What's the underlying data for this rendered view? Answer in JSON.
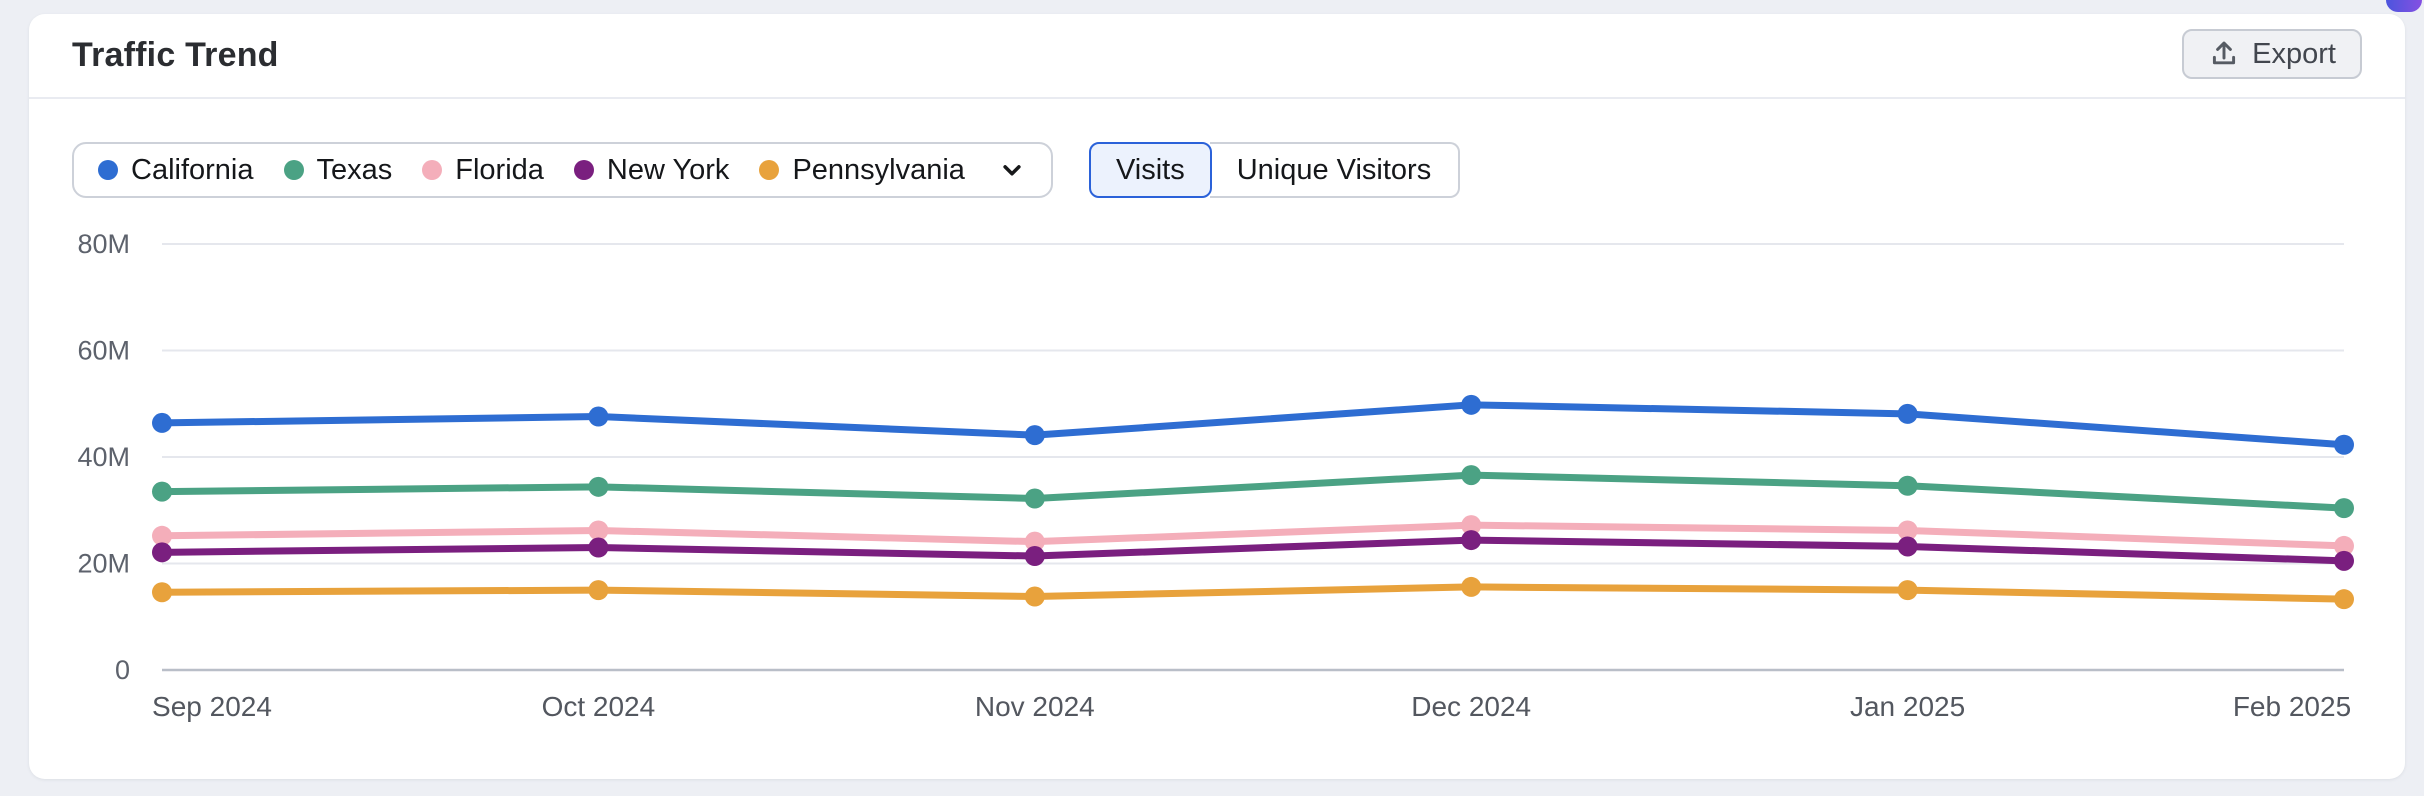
{
  "card": {
    "title": "Traffic Trend",
    "export_label": "Export"
  },
  "legend": {
    "items": [
      {
        "label": "California",
        "color": "#2e6dd2"
      },
      {
        "label": "Texas",
        "color": "#4ba284"
      },
      {
        "label": "Florida",
        "color": "#f4aeba"
      },
      {
        "label": "New York",
        "color": "#7a1f7f"
      },
      {
        "label": "Pennsylvania",
        "color": "#e8a23c"
      }
    ]
  },
  "toggle": {
    "options": [
      {
        "label": "Visits",
        "selected": true
      },
      {
        "label": "Unique Visitors",
        "selected": false
      }
    ]
  },
  "chart_data": {
    "type": "line",
    "title": "Traffic Trend",
    "metric": "Visits",
    "x": [
      "Sep 2024",
      "Oct 2024",
      "Nov 2024",
      "Dec 2024",
      "Jan 2025",
      "Feb 2025"
    ],
    "series": [
      {
        "name": "California",
        "color": "#2e6dd2",
        "values": [
          46.4,
          47.6,
          44.1,
          49.8,
          48.1,
          42.3
        ]
      },
      {
        "name": "Texas",
        "color": "#4ba284",
        "values": [
          33.5,
          34.4,
          32.2,
          36.6,
          34.6,
          30.4
        ]
      },
      {
        "name": "Florida",
        "color": "#f4aeba",
        "values": [
          25.2,
          26.2,
          24.1,
          27.2,
          26.2,
          23.3
        ]
      },
      {
        "name": "New York",
        "color": "#7a1f7f",
        "values": [
          22.1,
          23.0,
          21.4,
          24.4,
          23.2,
          20.5
        ]
      },
      {
        "name": "Pennsylvania",
        "color": "#e8a23c",
        "values": [
          14.6,
          15.0,
          13.8,
          15.6,
          15.0,
          13.3
        ]
      }
    ],
    "unit": "M",
    "xlabel": "",
    "ylabel": "",
    "ylim": [
      0,
      80
    ],
    "yticks": [
      {
        "value": 80,
        "label": "80M"
      },
      {
        "value": 60,
        "label": "60M"
      },
      {
        "value": 40,
        "label": "40M"
      },
      {
        "value": 20,
        "label": "20M"
      },
      {
        "value": 0,
        "label": "0"
      }
    ],
    "grid": true,
    "legend_position": "top-left"
  }
}
